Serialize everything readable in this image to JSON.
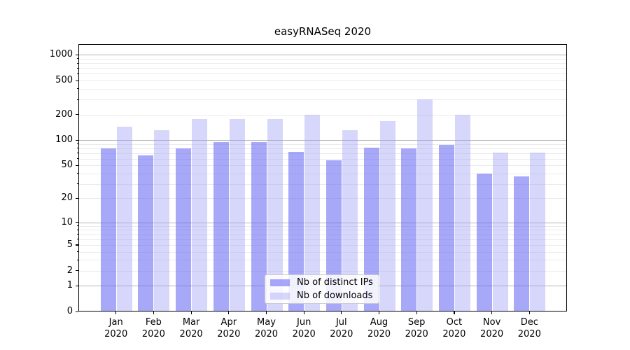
{
  "title": "easyRNASeq 2020",
  "y_axis": {
    "tick_labels": [
      "0",
      "1",
      "2",
      "5",
      "10",
      "20",
      "50",
      "100",
      "200",
      "500",
      "1000"
    ]
  },
  "legend": {
    "items": [
      {
        "label": "Nb of distinct IPs",
        "color": "rgba(100,100,245,0.56)"
      },
      {
        "label": "Nb of downloads",
        "color": "rgba(160,160,245,0.42)"
      }
    ]
  },
  "chart_data": {
    "type": "bar",
    "title": "easyRNASeq 2020",
    "categories": [
      "Jan 2020",
      "Feb 2020",
      "Mar 2020",
      "Apr 2020",
      "May 2020",
      "Jun 2020",
      "Jul 2020",
      "Aug 2020",
      "Sep 2020",
      "Oct 2020",
      "Nov 2020",
      "Dec 2020"
    ],
    "series": [
      {
        "name": "Nb of distinct IPs",
        "color": "rgba(100,100,245,0.56)",
        "values": [
          80,
          66,
          79,
          95,
          95,
          72,
          58,
          82,
          80,
          88,
          40,
          37
        ]
      },
      {
        "name": "Nb of downloads",
        "color": "rgba(160,160,245,0.42)",
        "values": [
          143,
          130,
          178,
          178,
          178,
          200,
          130,
          168,
          300,
          200,
          71,
          71
        ]
      }
    ],
    "yscale": "log1p",
    "ylim": [
      0,
      1340
    ],
    "yticks": [
      0,
      1,
      2,
      5,
      10,
      20,
      50,
      100,
      200,
      500,
      1000
    ],
    "xlabel": "",
    "ylabel": "",
    "grid": "horizontal major+minor",
    "legend_position": "inside lower-center"
  }
}
